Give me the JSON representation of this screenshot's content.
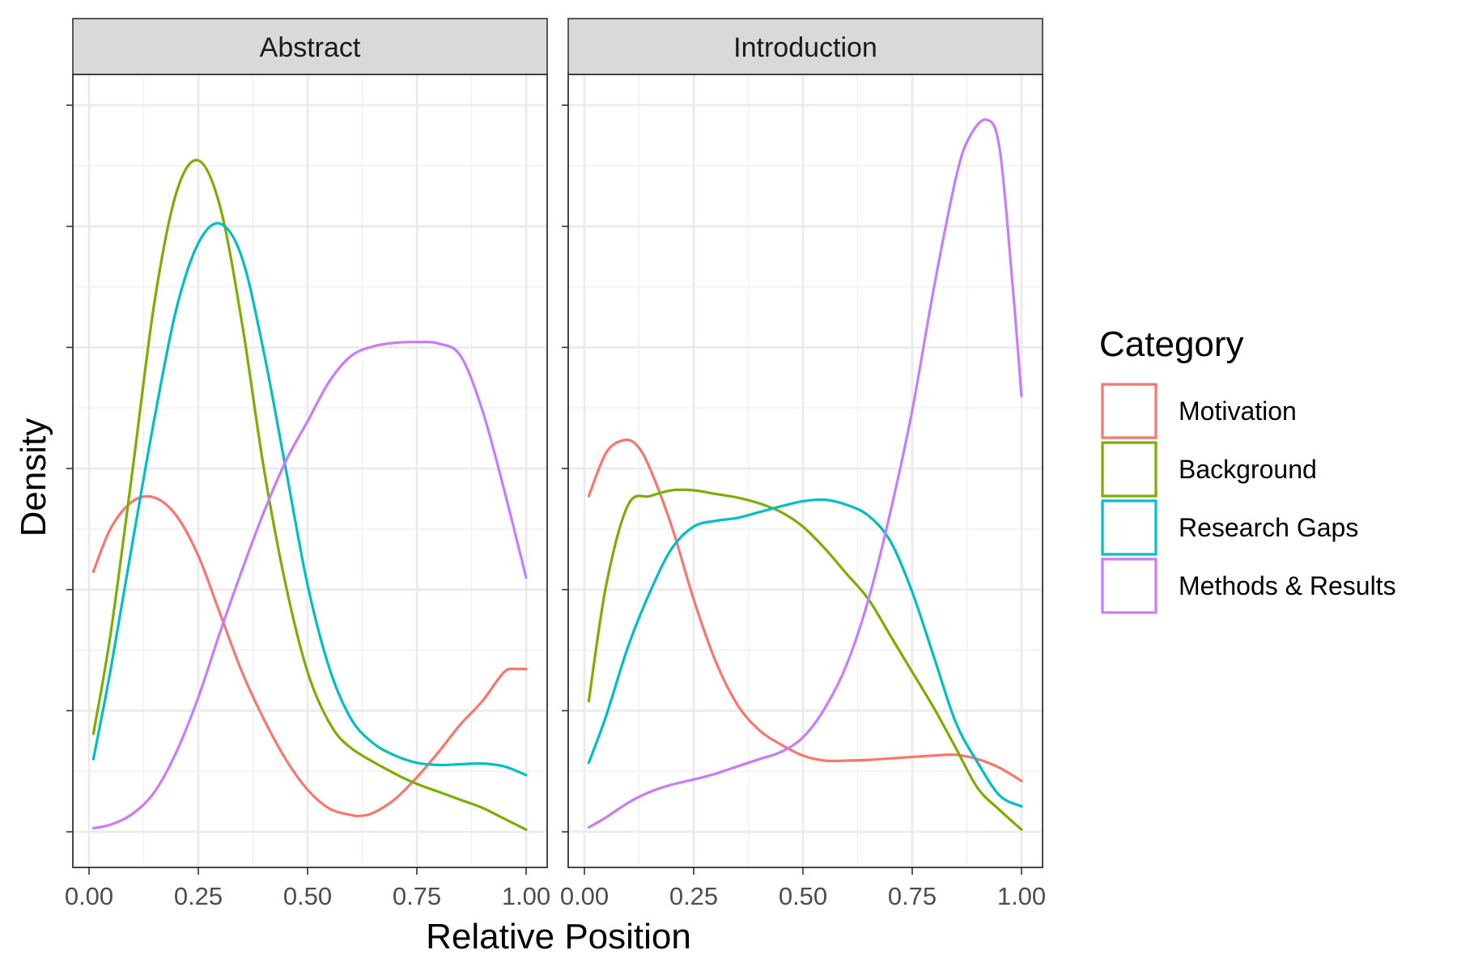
{
  "chart_data": {
    "type": "line",
    "xlabel": "Relative Position",
    "ylabel": "Density",
    "xlim": [
      0,
      1
    ],
    "xticks": [
      "0.00",
      "0.25",
      "0.50",
      "0.75",
      "1.00"
    ],
    "ylim": [
      0,
      1.0
    ],
    "y_tick_labels_shown": false,
    "grid": true,
    "legend": {
      "title": "Category",
      "position": "right"
    },
    "series_meta": [
      {
        "name": "Motivation",
        "color": "#F8766D"
      },
      {
        "name": "Background",
        "color": "#7CAE00"
      },
      {
        "name": "Research Gaps",
        "color": "#00BFC4"
      },
      {
        "name": "Methods & Results",
        "color": "#C77CFF"
      }
    ],
    "panels": [
      {
        "label": "Abstract",
        "series": [
          {
            "name": "Motivation",
            "x": [
              0.01,
              0.05,
              0.1,
              0.15,
              0.2,
              0.25,
              0.3,
              0.35,
              0.4,
              0.45,
              0.5,
              0.55,
              0.6,
              0.62,
              0.65,
              0.7,
              0.75,
              0.8,
              0.85,
              0.9,
              0.95,
              0.98,
              1.0
            ],
            "y": [
              0.358,
              0.418,
              0.455,
              0.46,
              0.435,
              0.38,
              0.3,
              0.22,
              0.155,
              0.1,
              0.058,
              0.032,
              0.023,
              0.022,
              0.026,
              0.045,
              0.075,
              0.11,
              0.148,
              0.18,
              0.22,
              0.224,
              0.224
            ]
          },
          {
            "name": "Background",
            "x": [
              0.01,
              0.05,
              0.1,
              0.15,
              0.2,
              0.25,
              0.3,
              0.35,
              0.4,
              0.45,
              0.5,
              0.55,
              0.6,
              0.7,
              0.75,
              0.8,
              0.85,
              0.9,
              0.95,
              1.0
            ],
            "y": [
              0.135,
              0.275,
              0.5,
              0.73,
              0.88,
              0.924,
              0.86,
              0.7,
              0.5,
              0.34,
              0.22,
              0.15,
              0.115,
              0.08,
              0.066,
              0.055,
              0.044,
              0.033,
              0.018,
              0.003
            ]
          },
          {
            "name": "Research Gaps",
            "x": [
              0.01,
              0.05,
              0.1,
              0.15,
              0.2,
              0.25,
              0.3,
              0.35,
              0.4,
              0.45,
              0.5,
              0.55,
              0.6,
              0.65,
              0.7,
              0.75,
              0.8,
              0.85,
              0.9,
              0.95,
              1.0
            ],
            "y": [
              0.1,
              0.225,
              0.4,
              0.57,
              0.72,
              0.81,
              0.837,
              0.79,
              0.66,
              0.5,
              0.34,
              0.225,
              0.155,
              0.122,
              0.105,
              0.095,
              0.092,
              0.093,
              0.094,
              0.09,
              0.078
            ]
          },
          {
            "name": "Methods & Results",
            "x": [
              0.01,
              0.05,
              0.1,
              0.15,
              0.2,
              0.25,
              0.3,
              0.35,
              0.4,
              0.45,
              0.5,
              0.55,
              0.6,
              0.65,
              0.7,
              0.75,
              0.8,
              0.85,
              0.9,
              0.95,
              1.0
            ],
            "y": [
              0.005,
              0.01,
              0.025,
              0.055,
              0.11,
              0.185,
              0.275,
              0.36,
              0.44,
              0.51,
              0.565,
              0.62,
              0.655,
              0.668,
              0.673,
              0.674,
              0.672,
              0.655,
              0.58,
              0.47,
              0.35
            ]
          }
        ]
      },
      {
        "label": "Introduction",
        "series": [
          {
            "name": "Motivation",
            "x": [
              0.01,
              0.05,
              0.09,
              0.12,
              0.15,
              0.2,
              0.25,
              0.3,
              0.35,
              0.4,
              0.45,
              0.5,
              0.55,
              0.6,
              0.65,
              0.7,
              0.75,
              0.8,
              0.85,
              0.9,
              0.95,
              1.0
            ],
            "y": [
              0.462,
              0.522,
              0.539,
              0.532,
              0.5,
              0.42,
              0.32,
              0.235,
              0.175,
              0.14,
              0.12,
              0.105,
              0.098,
              0.098,
              0.099,
              0.101,
              0.103,
              0.105,
              0.106,
              0.1,
              0.088,
              0.07
            ]
          },
          {
            "name": "Background",
            "x": [
              0.01,
              0.05,
              0.1,
              0.15,
              0.2,
              0.25,
              0.3,
              0.35,
              0.4,
              0.45,
              0.5,
              0.55,
              0.6,
              0.65,
              0.7,
              0.75,
              0.8,
              0.85,
              0.9,
              0.95,
              1.0
            ],
            "y": [
              0.18,
              0.34,
              0.45,
              0.462,
              0.47,
              0.47,
              0.465,
              0.46,
              0.452,
              0.44,
              0.42,
              0.39,
              0.355,
              0.32,
              0.27,
              0.22,
              0.17,
              0.115,
              0.06,
              0.03,
              0.003
            ]
          },
          {
            "name": "Research Gaps",
            "x": [
              0.01,
              0.05,
              0.1,
              0.15,
              0.2,
              0.25,
              0.3,
              0.35,
              0.4,
              0.45,
              0.5,
              0.55,
              0.6,
              0.65,
              0.7,
              0.75,
              0.8,
              0.85,
              0.9,
              0.95,
              1.0
            ],
            "y": [
              0.095,
              0.16,
              0.255,
              0.33,
              0.39,
              0.42,
              0.428,
              0.432,
              0.44,
              0.448,
              0.455,
              0.457,
              0.45,
              0.435,
              0.4,
              0.33,
              0.24,
              0.15,
              0.095,
              0.05,
              0.035
            ]
          },
          {
            "name": "Methods & Results",
            "x": [
              0.01,
              0.05,
              0.1,
              0.15,
              0.2,
              0.25,
              0.3,
              0.35,
              0.4,
              0.45,
              0.5,
              0.55,
              0.6,
              0.65,
              0.7,
              0.75,
              0.8,
              0.85,
              0.88,
              0.92,
              0.95,
              0.98,
              1.0
            ],
            "y": [
              0.006,
              0.02,
              0.04,
              0.055,
              0.065,
              0.072,
              0.08,
              0.09,
              0.1,
              0.11,
              0.13,
              0.17,
              0.23,
              0.32,
              0.44,
              0.58,
              0.75,
              0.9,
              0.955,
              0.98,
              0.94,
              0.75,
              0.6
            ]
          }
        ]
      }
    ]
  }
}
